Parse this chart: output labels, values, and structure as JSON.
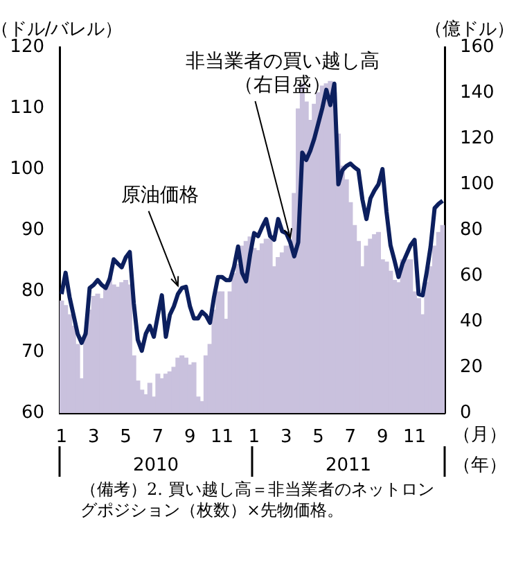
{
  "chart_data": {
    "type": "bar",
    "ylabel": "（ドル/バレル）",
    "y2label": "（億ドル）",
    "categories": [
      "1",
      null,
      null,
      null,
      null,
      null,
      null,
      null,
      "3",
      null,
      null,
      null,
      null,
      null,
      null,
      null,
      "5",
      null,
      null,
      null,
      null,
      null,
      null,
      null,
      "7",
      null,
      null,
      null,
      null,
      null,
      null,
      null,
      "9",
      null,
      null,
      null,
      null,
      null,
      null,
      null,
      "11",
      null,
      null,
      null,
      null,
      null,
      null,
      null,
      "1",
      null,
      null,
      null,
      null,
      null,
      null,
      null,
      "3",
      null,
      null,
      null,
      null,
      null,
      null,
      null,
      "5",
      null,
      null,
      null,
      null,
      null,
      null,
      null,
      "7",
      null,
      null,
      null,
      null,
      null,
      null,
      null,
      "9",
      null,
      null,
      null,
      null,
      null,
      null,
      null,
      "11",
      null,
      null,
      null,
      null,
      null,
      null,
      null
    ],
    "series": [
      {
        "name": "非当業者の買い越し高（右目盛）",
        "axis": "y2",
        "color": "#c9c1dd",
        "values": [
          49,
          47,
          43,
          38,
          30,
          15,
          35,
          45,
          51,
          52,
          50,
          55,
          59,
          56,
          55,
          57,
          58,
          56,
          25,
          14,
          10,
          8,
          13,
          7,
          17,
          15,
          17,
          18,
          20,
          24,
          25,
          24,
          21,
          22,
          7,
          5,
          25,
          30,
          45,
          53,
          53,
          41,
          53,
          61,
          65,
          73,
          75,
          77,
          72,
          71,
          74,
          76,
          76,
          64,
          68,
          70,
          73,
          73,
          96,
          133,
          144,
          136,
          128,
          135,
          140,
          143,
          144,
          145,
          140,
          122,
          108,
          102,
          92,
          82,
          75,
          64,
          73,
          76,
          78,
          79,
          67,
          66,
          62,
          58,
          57,
          67,
          67,
          67,
          53,
          50,
          43,
          57,
          64,
          73,
          79,
          82
        ]
      },
      {
        "name": "原油価格",
        "type": "line",
        "color": "#0c1f5e",
        "values": [
          79.5,
          83,
          79,
          76,
          73,
          71.5,
          73,
          80.5,
          81,
          81.8,
          81,
          80.5,
          82,
          85.2,
          84.5,
          83.9,
          85.5,
          86.4,
          78,
          72,
          70.2,
          73,
          74.3,
          72.5,
          76,
          79.3,
          72.5,
          76.1,
          77.5,
          79.5,
          80.5,
          80.7,
          77.5,
          75.5,
          75.5,
          76.6,
          76,
          74.8,
          79,
          82.3,
          82.3,
          81.8,
          81.8,
          84,
          87.3,
          83,
          81.6,
          86,
          89.5,
          89,
          90.5,
          91.8,
          89,
          88.4,
          91.8,
          89.8,
          89.5,
          88,
          85.7,
          88,
          102.7,
          101.5,
          103,
          105,
          107.5,
          110,
          113,
          110.5,
          114,
          97.5,
          99.8,
          100.5,
          100.9,
          100.3,
          99.8,
          95,
          91.8,
          95.2,
          96.5,
          97.5,
          100,
          93,
          87.5,
          85,
          82.3,
          84.5,
          86,
          87.5,
          88.4,
          79.5,
          79.3,
          83,
          87.3,
          93.6,
          94.3,
          94.8
        ]
      }
    ],
    "ylim": [
      60,
      120
    ],
    "yticks": [
      60,
      70,
      80,
      90,
      100,
      110,
      120
    ],
    "y2lim": [
      0,
      160
    ],
    "y2ticks": [
      0,
      20,
      40,
      60,
      80,
      100,
      120,
      140,
      160
    ],
    "grid": false,
    "legend": false,
    "annotations": [
      "2010",
      "2011",
      "（月）",
      "（年）",
      "（備考）2. 買い越し高＝非当業者のネットロングポジション（枚数）×先物価格。"
    ]
  }
}
